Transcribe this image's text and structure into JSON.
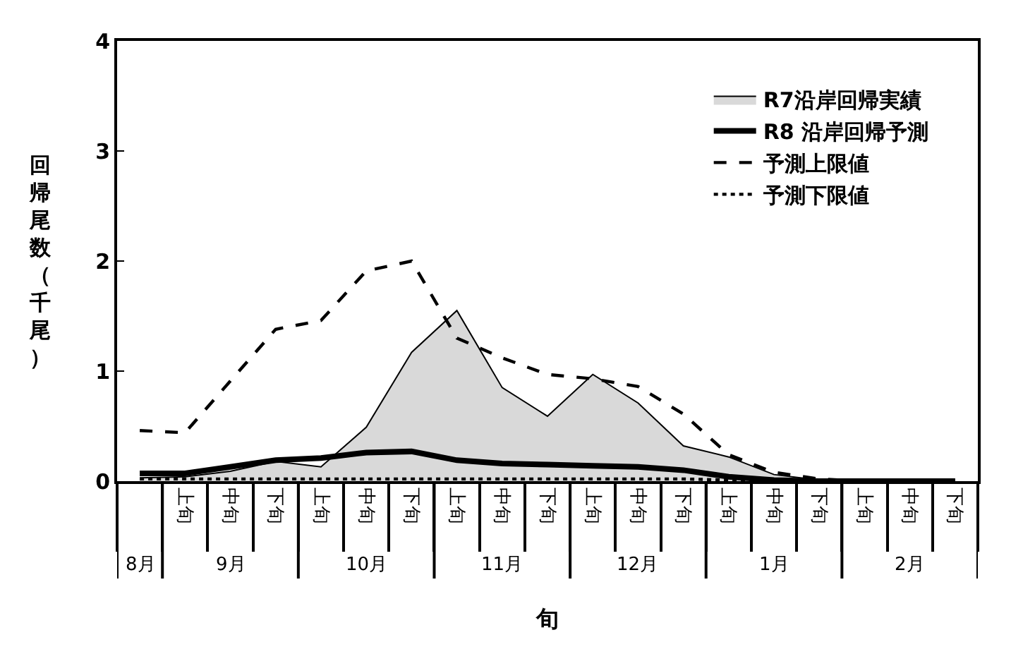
{
  "chart_data": {
    "type": "line",
    "xlabel": "旬",
    "ylabel": "回帰尾数（千尾）",
    "categories": [
      null,
      "上旬",
      "中旬",
      "下旬",
      "上旬",
      "中旬",
      "下旬",
      "上旬",
      "中旬",
      "下旬",
      "上旬",
      "中旬",
      "下旬",
      "上旬",
      "中旬",
      "下旬",
      "上旬",
      "中旬",
      "下旬"
    ],
    "annotations": [
      "8月",
      "9月",
      "10月",
      "11月",
      "12月",
      "1月",
      "2月"
    ],
    "series": [
      {
        "name": "R7沿岸回帰実績",
        "type": "area",
        "color": "#d9d9d9",
        "values": [
          0.03,
          0.04,
          0.09,
          0.18,
          0.13,
          0.49,
          1.17,
          1.55,
          0.85,
          0.59,
          0.97,
          0.71,
          0.32,
          0.22,
          0.06,
          0.01,
          0,
          0,
          0
        ]
      },
      {
        "name": "R8 沿岸回帰予測",
        "color": "#000000",
        "line_style": "solid",
        "values": [
          0.07,
          0.07,
          0.13,
          0.19,
          0.21,
          0.26,
          0.27,
          0.19,
          0.16,
          0.15,
          0.14,
          0.13,
          0.1,
          0.04,
          0.01,
          0,
          0,
          0,
          0
        ]
      },
      {
        "name": "予測上限値",
        "color": "#000000",
        "line_style": "dashed",
        "values": [
          0.46,
          0.44,
          0.91,
          1.38,
          1.46,
          1.91,
          2.0,
          1.3,
          1.12,
          0.97,
          0.93,
          0.86,
          0.61,
          0.24,
          0.08,
          0.02,
          0,
          0,
          0
        ]
      },
      {
        "name": "予測下限値",
        "color": "#000000",
        "line_style": "dotted",
        "values": [
          0.02,
          0.02,
          0.02,
          0.02,
          0.02,
          0.02,
          0.02,
          0.02,
          0.02,
          0.02,
          0.02,
          0.02,
          0.02,
          0.01,
          0,
          0,
          0,
          0,
          0
        ]
      }
    ],
    "ylim": [
      0,
      4
    ],
    "yticks": [
      0,
      1,
      2,
      3,
      4
    ],
    "grid": false,
    "legend": "top right"
  }
}
